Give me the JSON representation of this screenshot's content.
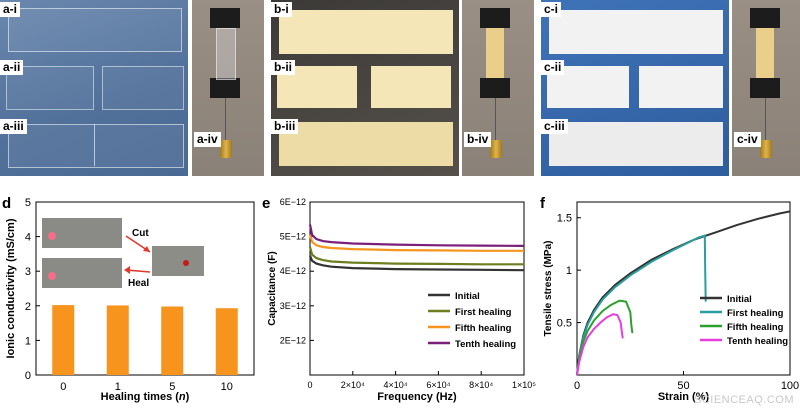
{
  "figure": {
    "top_labels": {
      "a_i": "a-i",
      "a_ii": "a-ii",
      "a_iii": "a-iii",
      "a_iv": "a-iv",
      "b_i": "b-i",
      "b_ii": "b-ii",
      "b_iii": "b-iii",
      "b_iv": "b-iv",
      "c_i": "c-i",
      "c_ii": "c-ii",
      "c_iii": "c-iii",
      "c_iv": "c-iv"
    },
    "panel_letters": {
      "d": "d",
      "e": "e",
      "f": "f"
    },
    "inset": {
      "cut": "Cut",
      "heal": "Heal"
    },
    "watermark": "SCIENCEAQ.COM",
    "colors": {
      "blue_bg": "#55749c",
      "film_beige": "#f3e3b0",
      "film_white": "#f1f1f1",
      "bar_orange": "#f7941d",
      "initial": "#333333",
      "first": "#6b7f1e",
      "fifth": "#f7941d",
      "tenth": "#7b1f7a",
      "f_first": "#2a9d9d",
      "f_fifth": "#2ca02c",
      "f_tenth": "#e83ee0"
    }
  },
  "chart_data": [
    {
      "id": "d",
      "type": "bar",
      "categories": [
        "0",
        "1",
        "5",
        "10"
      ],
      "values": [
        2.02,
        2.01,
        1.98,
        1.93
      ],
      "ylabel": "Ionic conductivity (mS/cm)",
      "xlabel": "Healing times (n)",
      "ylim": [
        0,
        5
      ],
      "yticks": [
        "0",
        "1",
        "2",
        "3",
        "4",
        "5"
      ]
    },
    {
      "id": "e",
      "type": "line",
      "xlabel": "Frequency (Hz)",
      "ylabel": "Capacitance (F)",
      "xlim": [
        0,
        100000
      ],
      "ylim": [
        1e-12,
        6e-12
      ],
      "xticks": [
        "0",
        "2×10⁴",
        "4×10⁴",
        "6×10⁴",
        "8×10⁴",
        "1×10⁵"
      ],
      "yticks": [
        "2E−12",
        "3E−12",
        "4E−12",
        "5E−12",
        "6E−12"
      ],
      "legend": [
        "Initial",
        "First healing",
        "Fifth healing",
        "Tenth healing"
      ],
      "series": [
        {
          "name": "Initial",
          "x": [
            0,
            1000,
            3000,
            6000,
            10000,
            20000,
            40000,
            60000,
            80000,
            100000
          ],
          "y": [
            4.45e-12,
            4.3e-12,
            4.22e-12,
            4.17e-12,
            4.13e-12,
            4.09e-12,
            4.06e-12,
            4.05e-12,
            4.04e-12,
            4.03e-12
          ]
        },
        {
          "name": "First healing",
          "x": [
            0,
            1000,
            3000,
            6000,
            10000,
            20000,
            40000,
            60000,
            80000,
            100000
          ],
          "y": [
            4.7e-12,
            4.48e-12,
            4.38e-12,
            4.32e-12,
            4.28e-12,
            4.25e-12,
            4.22e-12,
            4.21e-12,
            4.2e-12,
            4.2e-12
          ]
        },
        {
          "name": "Fifth healing",
          "x": [
            0,
            1000,
            3000,
            6000,
            10000,
            20000,
            40000,
            60000,
            80000,
            100000
          ],
          "y": [
            5.05e-12,
            4.85e-12,
            4.75e-12,
            4.7e-12,
            4.67e-12,
            4.64e-12,
            4.61e-12,
            4.6e-12,
            4.59e-12,
            4.59e-12
          ]
        },
        {
          "name": "Tenth healing",
          "x": [
            0,
            1000,
            3000,
            6000,
            10000,
            20000,
            40000,
            60000,
            80000,
            100000
          ],
          "y": [
            5.35e-12,
            5.05e-12,
            4.93e-12,
            4.87e-12,
            4.84e-12,
            4.8e-12,
            4.77e-12,
            4.75e-12,
            4.74e-12,
            4.73e-12
          ]
        }
      ]
    },
    {
      "id": "f",
      "type": "line",
      "xlabel": "Strain (%)",
      "ylabel": "Tensile stress (MPa)",
      "xlim": [
        0,
        100
      ],
      "ylim": [
        0,
        1.65
      ],
      "xticks": [
        "0",
        "50",
        "100"
      ],
      "yticks": [
        "0.5",
        "1",
        "1.5"
      ],
      "legend": [
        "Initial",
        "First healing",
        "Fifth healing",
        "Tenth healing"
      ],
      "series": [
        {
          "name": "Initial",
          "x": [
            0,
            1,
            3,
            5,
            8,
            12,
            18,
            25,
            35,
            45,
            55,
            65,
            75,
            85,
            95,
            100
          ],
          "y": [
            0,
            0.18,
            0.38,
            0.5,
            0.62,
            0.74,
            0.86,
            0.97,
            1.1,
            1.2,
            1.29,
            1.36,
            1.43,
            1.49,
            1.54,
            1.56
          ]
        },
        {
          "name": "First healing",
          "x": [
            0,
            1,
            3,
            5,
            8,
            12,
            18,
            25,
            35,
            45,
            52,
            57,
            60,
            60.2,
            60.4
          ],
          "y": [
            0,
            0.17,
            0.36,
            0.48,
            0.6,
            0.72,
            0.84,
            0.95,
            1.08,
            1.19,
            1.26,
            1.31,
            1.33,
            1.0,
            0.7
          ]
        },
        {
          "name": "Fifth healing",
          "x": [
            0,
            1,
            3,
            5,
            8,
            12,
            16,
            20,
            23,
            25,
            25.5,
            26
          ],
          "y": [
            0,
            0.15,
            0.32,
            0.42,
            0.52,
            0.61,
            0.67,
            0.71,
            0.7,
            0.6,
            0.48,
            0.4
          ]
        },
        {
          "name": "Tenth healing",
          "x": [
            0,
            1,
            3,
            5,
            8,
            11,
            14,
            17,
            19,
            20.5,
            21,
            21.5
          ],
          "y": [
            0,
            0.12,
            0.27,
            0.36,
            0.44,
            0.5,
            0.55,
            0.58,
            0.57,
            0.5,
            0.42,
            0.35
          ]
        }
      ]
    }
  ]
}
